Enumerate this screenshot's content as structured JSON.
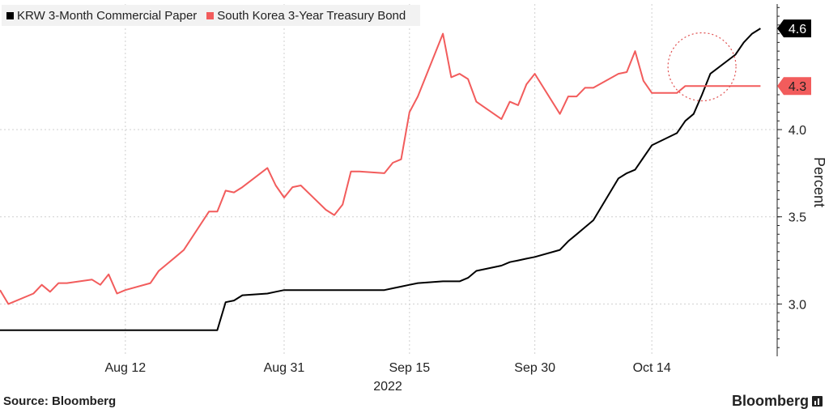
{
  "chart_data": {
    "type": "line",
    "title": "",
    "xlabel": "2022",
    "ylabel": "Percent",
    "ylim": [
      2.7,
      4.72
    ],
    "yticks": [
      3.0,
      3.5,
      4.0
    ],
    "ytick_labels": [
      "3.0",
      "3.5",
      "4.0"
    ],
    "xlim": [
      "2022-07-28",
      "2022-10-29"
    ],
    "xticks": [
      "2022-08-12",
      "2022-08-31",
      "2022-09-15",
      "2022-09-30",
      "2022-10-14"
    ],
    "xtick_labels": [
      "Aug 12",
      "Aug 31",
      "Sep 15",
      "Sep 30",
      "Oct 14"
    ],
    "grid": true,
    "legend_position": "top-left",
    "series": [
      {
        "name": "KRW 3-Month Commercial Paper",
        "color": "#000000",
        "last_value_label": "4.6",
        "x": [
          "2022-07-28",
          "2022-08-16",
          "2022-08-17",
          "2022-08-23",
          "2022-08-24",
          "2022-08-25",
          "2022-08-26",
          "2022-08-29",
          "2022-08-30",
          "2022-08-31",
          "2022-09-01",
          "2022-09-02",
          "2022-09-05",
          "2022-09-06",
          "2022-09-07",
          "2022-09-08",
          "2022-09-09",
          "2022-09-12",
          "2022-09-13",
          "2022-09-14",
          "2022-09-15",
          "2022-09-16",
          "2022-09-19",
          "2022-09-20",
          "2022-09-21",
          "2022-09-22",
          "2022-09-23",
          "2022-09-26",
          "2022-09-27",
          "2022-09-28",
          "2022-09-29",
          "2022-09-30",
          "2022-10-03",
          "2022-10-04",
          "2022-10-05",
          "2022-10-06",
          "2022-10-07",
          "2022-10-10",
          "2022-10-11",
          "2022-10-12",
          "2022-10-13",
          "2022-10-14",
          "2022-10-17",
          "2022-10-18",
          "2022-10-19",
          "2022-10-20",
          "2022-10-21",
          "2022-10-24",
          "2022-10-25",
          "2022-10-26",
          "2022-10-27"
        ],
        "values": [
          2.85,
          2.85,
          2.85,
          2.85,
          3.01,
          3.02,
          3.05,
          3.06,
          3.07,
          3.08,
          3.08,
          3.08,
          3.08,
          3.08,
          3.08,
          3.08,
          3.08,
          3.08,
          3.09,
          3.1,
          3.11,
          3.12,
          3.13,
          3.13,
          3.13,
          3.15,
          3.19,
          3.22,
          3.24,
          3.25,
          3.26,
          3.27,
          3.31,
          3.36,
          3.4,
          3.44,
          3.48,
          3.72,
          3.75,
          3.77,
          3.84,
          3.91,
          3.98,
          4.05,
          4.09,
          4.2,
          4.32,
          4.43,
          4.5,
          4.55,
          4.58
        ]
      },
      {
        "name": "South Korea 3-Year Treasury Bond",
        "color": "#f25c5c",
        "last_value_label": "4.3",
        "x": [
          "2022-07-28",
          "2022-07-29",
          "2022-08-01",
          "2022-08-02",
          "2022-08-03",
          "2022-08-04",
          "2022-08-05",
          "2022-08-08",
          "2022-08-09",
          "2022-08-10",
          "2022-08-11",
          "2022-08-12",
          "2022-08-15",
          "2022-08-16",
          "2022-08-17",
          "2022-08-18",
          "2022-08-19",
          "2022-08-22",
          "2022-08-23",
          "2022-08-24",
          "2022-08-25",
          "2022-08-26",
          "2022-08-29",
          "2022-08-30",
          "2022-08-31",
          "2022-09-01",
          "2022-09-02",
          "2022-09-05",
          "2022-09-06",
          "2022-09-07",
          "2022-09-08",
          "2022-09-09",
          "2022-09-12",
          "2022-09-13",
          "2022-09-14",
          "2022-09-15",
          "2022-09-16",
          "2022-09-19",
          "2022-09-20",
          "2022-09-21",
          "2022-09-22",
          "2022-09-23",
          "2022-09-26",
          "2022-09-27",
          "2022-09-28",
          "2022-09-29",
          "2022-09-30",
          "2022-10-03",
          "2022-10-04",
          "2022-10-05",
          "2022-10-06",
          "2022-10-07",
          "2022-10-10",
          "2022-10-11",
          "2022-10-12",
          "2022-10-13",
          "2022-10-14",
          "2022-10-17",
          "2022-10-18",
          "2022-10-19",
          "2022-10-20",
          "2022-10-21",
          "2022-10-24",
          "2022-10-25",
          "2022-10-26",
          "2022-10-27"
        ],
        "values": [
          3.08,
          3.0,
          3.06,
          3.11,
          3.07,
          3.12,
          3.12,
          3.14,
          3.11,
          3.17,
          3.06,
          3.08,
          3.12,
          3.19,
          3.23,
          3.27,
          3.31,
          3.53,
          3.53,
          3.65,
          3.64,
          3.67,
          3.78,
          3.68,
          3.61,
          3.67,
          3.68,
          3.54,
          3.51,
          3.57,
          3.76,
          3.76,
          3.75,
          3.81,
          3.83,
          4.1,
          4.19,
          4.55,
          4.3,
          4.32,
          4.29,
          4.16,
          4.06,
          4.16,
          4.14,
          4.26,
          4.32,
          4.09,
          4.19,
          4.19,
          4.24,
          4.24,
          4.32,
          4.33,
          4.45,
          4.28,
          4.21,
          4.21,
          4.25,
          4.25,
          4.25,
          4.25,
          4.25,
          4.25,
          4.25,
          4.25
        ]
      }
    ],
    "annotations": [
      {
        "type": "dashed-circle",
        "color": "#e05050",
        "x": "2022-10-20",
        "y": 4.36
      }
    ]
  },
  "footer": {
    "source": "Source: Bloomberg",
    "brand": "Bloomberg"
  },
  "icons": {
    "brand_icon": "bar-chart-icon"
  }
}
